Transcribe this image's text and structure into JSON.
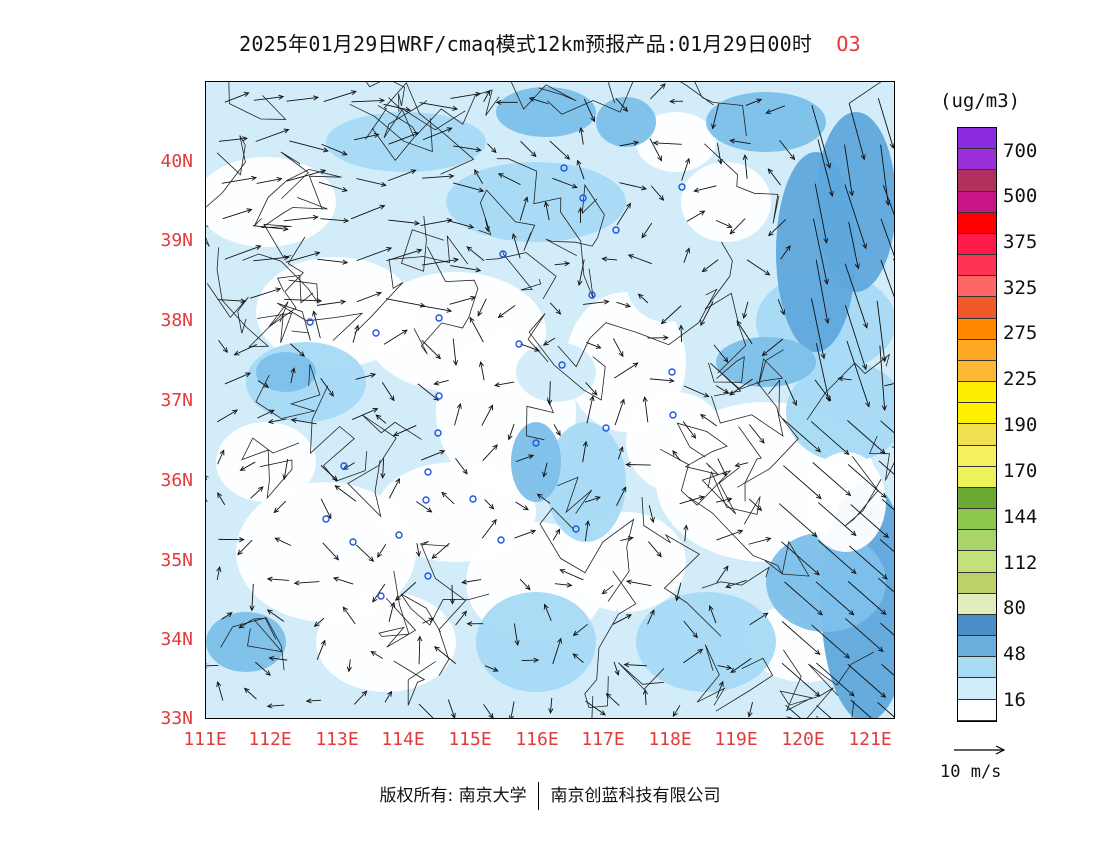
{
  "title": {
    "main": "2025年01月29日WRF/cmaq模式12km预报产品:01月29日00时",
    "species": "O3"
  },
  "map": {
    "lat_labels": [
      "40N",
      "39N",
      "38N",
      "37N",
      "36N",
      "35N",
      "34N",
      "33N"
    ],
    "lon_labels": [
      "111E",
      "112E",
      "113E",
      "114E",
      "115E",
      "116E",
      "117E",
      "118E",
      "119E",
      "120E",
      "121E"
    ],
    "lon_range": [
      111,
      121.4
    ],
    "lat_range": [
      33,
      41
    ]
  },
  "legend": {
    "unit": "(ug/m3)",
    "labels": [
      "700",
      "500",
      "375",
      "325",
      "275",
      "225",
      "190",
      "170",
      "144",
      "112",
      "80",
      "48",
      "16"
    ],
    "colors_top_to_bottom": [
      "#8a2be2",
      "#9b30d9",
      "#b0305e",
      "#c71585",
      "#ff0000",
      "#ff1a4a",
      "#ff3355",
      "#ff6666",
      "#f05a28",
      "#ff8800",
      "#ffaa22",
      "#ffb833",
      "#ffee00",
      "#fff000",
      "#f0e050",
      "#f4f060",
      "#eef25a",
      "#6aaa32",
      "#8cc84b",
      "#a8d46a",
      "#c4e07a",
      "#bcd268",
      "#dfeebc",
      "#4a8ec8",
      "#6aaedc",
      "#a8daf4",
      "#d0eefa",
      "#ffffff"
    ],
    "wind_label": "10 m/s"
  },
  "footer": {
    "copyright": "版权所有: 南京大学",
    "company": "南京创蓝科技有限公司"
  }
}
